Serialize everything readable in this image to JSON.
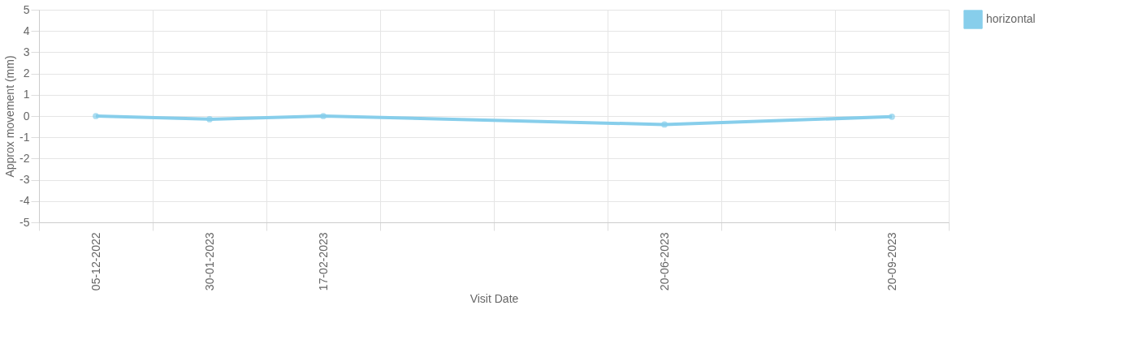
{
  "chart_data": {
    "type": "line",
    "xlabel": "Visit Date",
    "ylabel": "Approx movement (mm)",
    "categories": [
      "05-12-2022",
      "30-01-2023",
      "17-02-2023",
      null,
      null,
      "20-06-2023",
      null,
      "20-09-2023"
    ],
    "series": [
      {
        "name": "horizontal",
        "color": "#87ceeb",
        "values": [
          0,
          -0.15,
          0,
          null,
          null,
          -0.4,
          null,
          -0.03
        ]
      }
    ],
    "ylim": [
      -5,
      5
    ],
    "yticks": [
      -5,
      -4,
      -3,
      -2,
      -1,
      0,
      1,
      2,
      3,
      4,
      5
    ],
    "grid": true,
    "legend": "right",
    "marker": "circle",
    "line_style": "solid"
  }
}
